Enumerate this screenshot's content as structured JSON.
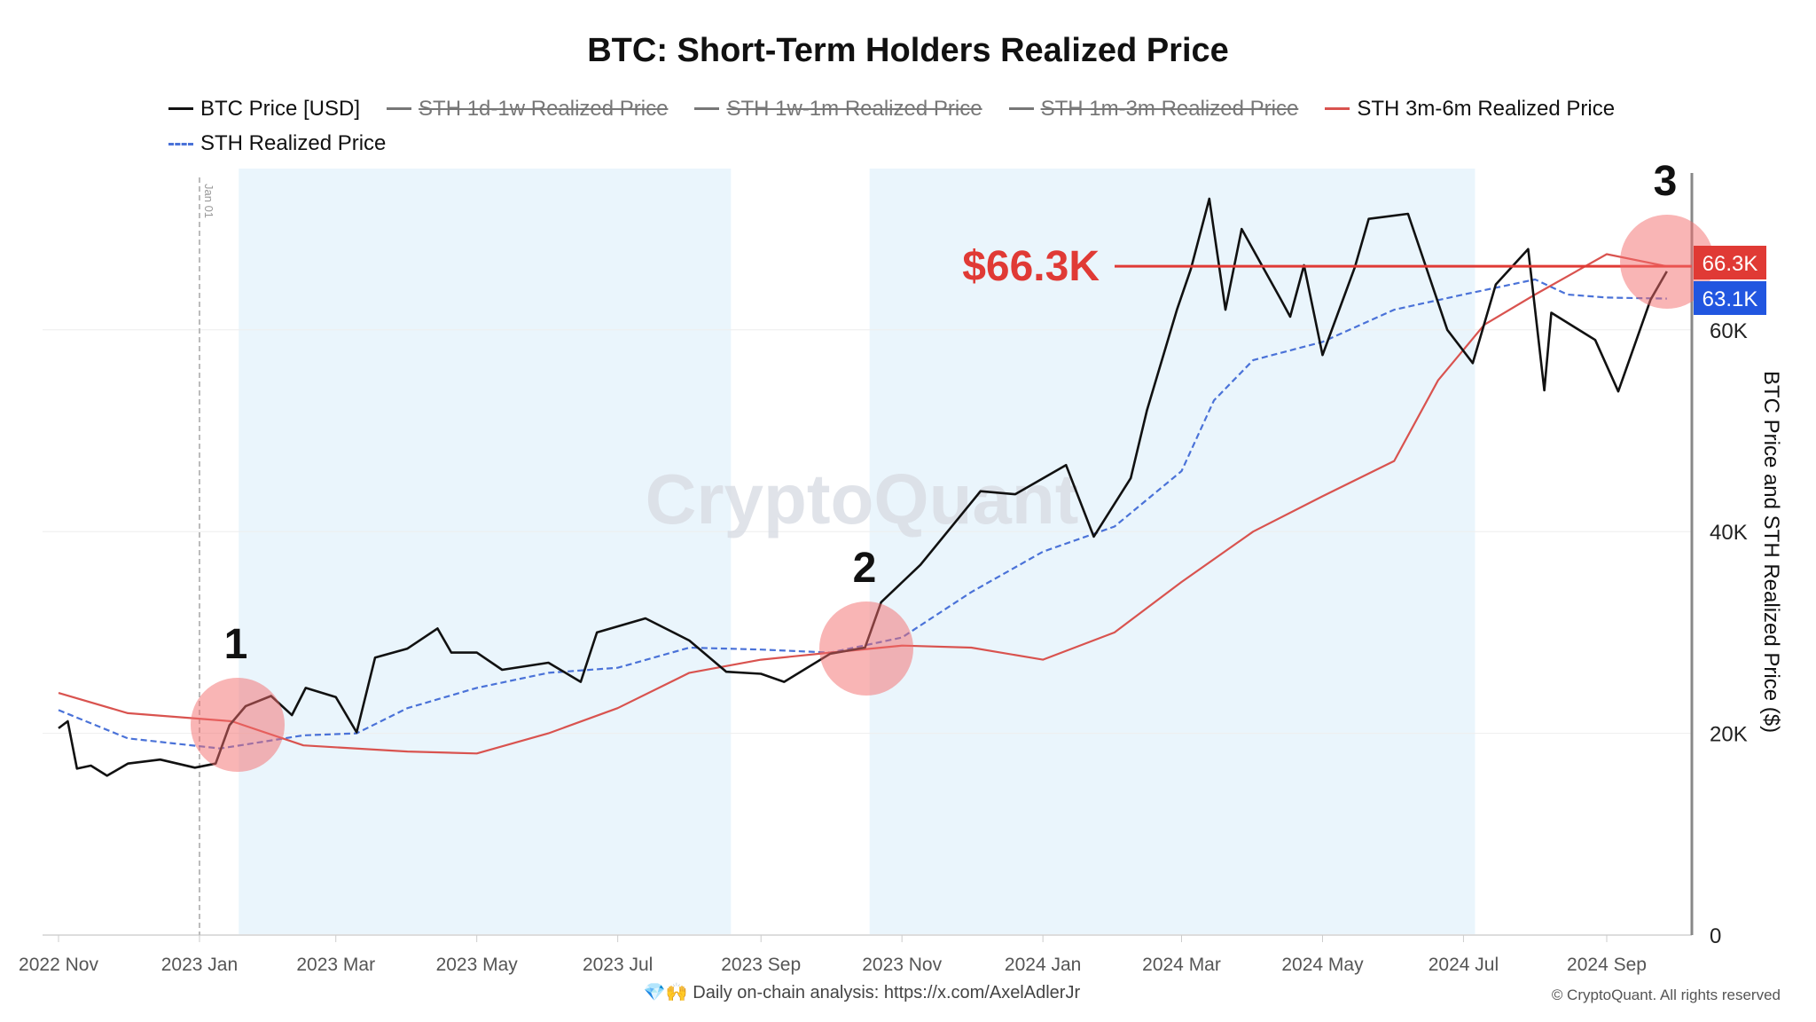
{
  "chart_data": {
    "type": "line",
    "title": "BTC: Short-Term Holders Realized Price",
    "ylabel": "BTC Price and STH Realized Price ($)",
    "ylim": [
      0,
      76000
    ],
    "yticks": [
      {
        "v": 0,
        "label": "0"
      },
      {
        "v": 20000,
        "label": "20K"
      },
      {
        "v": 40000,
        "label": "40K"
      },
      {
        "v": 60000,
        "label": "60K"
      }
    ],
    "xlim": [
      "2022-10-26",
      "2024-10-08"
    ],
    "xticks": [
      {
        "d": "2022-11-01",
        "label": "2022 Nov"
      },
      {
        "d": "2023-01-01",
        "label": "2023 Jan"
      },
      {
        "d": "2023-03-01",
        "label": "2023 Mar"
      },
      {
        "d": "2023-05-01",
        "label": "2023 May"
      },
      {
        "d": "2023-07-01",
        "label": "2023 Jul"
      },
      {
        "d": "2023-09-01",
        "label": "2023 Sep"
      },
      {
        "d": "2023-11-01",
        "label": "2023 Nov"
      },
      {
        "d": "2024-01-01",
        "label": "2024 Jan"
      },
      {
        "d": "2024-03-01",
        "label": "2024 Mar"
      },
      {
        "d": "2024-05-01",
        "label": "2024 May"
      },
      {
        "d": "2024-07-01",
        "label": "2024 Jul"
      },
      {
        "d": "2024-09-01",
        "label": "2024 Sep"
      }
    ],
    "grid": true,
    "legend_position": "top",
    "legend": [
      {
        "name": "BTC Price [USD]",
        "color": "#111111",
        "hidden": false,
        "dash": false
      },
      {
        "name": "STH 1d-1w Realized Price",
        "color": "#777777",
        "hidden": true,
        "dash": false
      },
      {
        "name": "STH 1w-1m Realized Price",
        "color": "#777777",
        "hidden": true,
        "dash": false
      },
      {
        "name": "STH 1m-3m Realized Price",
        "color": "#777777",
        "hidden": true,
        "dash": false
      },
      {
        "name": "STH 3m-6m Realized Price",
        "color": "#d9534f",
        "hidden": false,
        "dash": false
      },
      {
        "name": "STH Realized Price",
        "color": "#4a72d8",
        "hidden": false,
        "dash": true
      }
    ],
    "series": [
      {
        "name": "BTC Price [USD]",
        "color": "#111111",
        "points": [
          [
            "2022-11-01",
            20500
          ],
          [
            "2022-11-05",
            21200
          ],
          [
            "2022-11-09",
            16500
          ],
          [
            "2022-11-15",
            16800
          ],
          [
            "2022-11-22",
            15800
          ],
          [
            "2022-12-01",
            17000
          ],
          [
            "2022-12-15",
            17400
          ],
          [
            "2022-12-30",
            16600
          ],
          [
            "2023-01-08",
            17000
          ],
          [
            "2023-01-14",
            20800
          ],
          [
            "2023-01-21",
            22700
          ],
          [
            "2023-02-01",
            23700
          ],
          [
            "2023-02-10",
            21800
          ],
          [
            "2023-02-16",
            24500
          ],
          [
            "2023-03-01",
            23600
          ],
          [
            "2023-03-10",
            20100
          ],
          [
            "2023-03-18",
            27500
          ],
          [
            "2023-04-01",
            28400
          ],
          [
            "2023-04-14",
            30400
          ],
          [
            "2023-04-20",
            28000
          ],
          [
            "2023-05-01",
            28000
          ],
          [
            "2023-05-12",
            26300
          ],
          [
            "2023-06-01",
            27000
          ],
          [
            "2023-06-15",
            25100
          ],
          [
            "2023-06-22",
            30000
          ],
          [
            "2023-07-13",
            31400
          ],
          [
            "2023-08-01",
            29200
          ],
          [
            "2023-08-17",
            26100
          ],
          [
            "2023-09-01",
            25900
          ],
          [
            "2023-09-11",
            25100
          ],
          [
            "2023-10-01",
            27900
          ],
          [
            "2023-10-16",
            28500
          ],
          [
            "2023-10-23",
            33000
          ],
          [
            "2023-11-09",
            36700
          ],
          [
            "2023-12-05",
            44000
          ],
          [
            "2023-12-20",
            43700
          ],
          [
            "2024-01-11",
            46600
          ],
          [
            "2024-01-23",
            39500
          ],
          [
            "2024-02-08",
            45300
          ],
          [
            "2024-02-15",
            52000
          ],
          [
            "2024-02-28",
            62000
          ],
          [
            "2024-03-05",
            66000
          ],
          [
            "2024-03-13",
            73000
          ],
          [
            "2024-03-20",
            62000
          ],
          [
            "2024-03-27",
            70000
          ],
          [
            "2024-04-13",
            63000
          ],
          [
            "2024-04-17",
            61300
          ],
          [
            "2024-04-23",
            66400
          ],
          [
            "2024-05-01",
            57500
          ],
          [
            "2024-05-15",
            66200
          ],
          [
            "2024-05-21",
            71000
          ],
          [
            "2024-06-07",
            71500
          ],
          [
            "2024-06-24",
            60000
          ],
          [
            "2024-07-05",
            56700
          ],
          [
            "2024-07-15",
            64500
          ],
          [
            "2024-07-29",
            68000
          ],
          [
            "2024-08-05",
            54000
          ],
          [
            "2024-08-08",
            61700
          ],
          [
            "2024-08-27",
            59000
          ],
          [
            "2024-09-06",
            53900
          ],
          [
            "2024-09-20",
            63000
          ],
          [
            "2024-09-27",
            65800
          ]
        ]
      },
      {
        "name": "STH 3m-6m Realized Price",
        "color": "#d9534f",
        "points": [
          [
            "2022-11-01",
            24000
          ],
          [
            "2022-12-01",
            22000
          ],
          [
            "2023-01-15",
            21200
          ],
          [
            "2023-02-15",
            18800
          ],
          [
            "2023-04-01",
            18200
          ],
          [
            "2023-05-01",
            18000
          ],
          [
            "2023-06-01",
            20000
          ],
          [
            "2023-07-01",
            22500
          ],
          [
            "2023-08-01",
            26000
          ],
          [
            "2023-09-01",
            27300
          ],
          [
            "2023-10-01",
            28000
          ],
          [
            "2023-11-01",
            28700
          ],
          [
            "2023-12-01",
            28500
          ],
          [
            "2024-01-01",
            27300
          ],
          [
            "2024-02-01",
            30000
          ],
          [
            "2024-03-01",
            35000
          ],
          [
            "2024-04-01",
            40000
          ],
          [
            "2024-05-01",
            43500
          ],
          [
            "2024-06-01",
            47000
          ],
          [
            "2024-06-20",
            55000
          ],
          [
            "2024-07-10",
            60500
          ],
          [
            "2024-08-01",
            63500
          ],
          [
            "2024-09-01",
            67500
          ],
          [
            "2024-09-27",
            66300
          ]
        ]
      },
      {
        "name": "STH Realized Price",
        "color": "#4a72d8",
        "dash": true,
        "points": [
          [
            "2022-11-01",
            22300
          ],
          [
            "2022-12-01",
            19500
          ],
          [
            "2023-01-10",
            18500
          ],
          [
            "2023-02-15",
            19800
          ],
          [
            "2023-03-10",
            20000
          ],
          [
            "2023-04-01",
            22500
          ],
          [
            "2023-05-01",
            24500
          ],
          [
            "2023-06-01",
            26000
          ],
          [
            "2023-07-01",
            26500
          ],
          [
            "2023-08-01",
            28500
          ],
          [
            "2023-09-01",
            28300
          ],
          [
            "2023-10-01",
            28000
          ],
          [
            "2023-11-01",
            29500
          ],
          [
            "2023-12-01",
            34000
          ],
          [
            "2024-01-01",
            38000
          ],
          [
            "2024-02-01",
            40500
          ],
          [
            "2024-03-01",
            46000
          ],
          [
            "2024-03-15",
            53000
          ],
          [
            "2024-04-01",
            57000
          ],
          [
            "2024-05-01",
            58800
          ],
          [
            "2024-06-01",
            62000
          ],
          [
            "2024-07-01",
            63500
          ],
          [
            "2024-08-01",
            65000
          ],
          [
            "2024-08-15",
            63500
          ],
          [
            "2024-09-01",
            63200
          ],
          [
            "2024-09-27",
            63100
          ]
        ]
      }
    ],
    "shaded_ranges": [
      [
        "2023-01-18",
        "2023-08-19"
      ],
      [
        "2023-10-18",
        "2024-07-06"
      ]
    ],
    "vline": {
      "d": "2023-01-01",
      "label": "Jan 01"
    },
    "annotations": {
      "markers": [
        {
          "label": "1",
          "d": "2023-01-18",
          "v": 21000
        },
        {
          "label": "2",
          "d": "2023-10-18",
          "v": 28200
        },
        {
          "label": "3",
          "d": "2024-09-21",
          "v": 66300
        }
      ],
      "hline": {
        "v": 66300,
        "label": "$66.3K",
        "from": "2023-12-10"
      },
      "last_values": [
        {
          "label": "66.3K",
          "color": "#e03a35"
        },
        {
          "label": "63.1K",
          "color": "#2156e0"
        }
      ]
    },
    "watermark": "CryptoQuant"
  },
  "footer": {
    "emoji": "💎🙌",
    "text": "Daily on-chain analysis: ",
    "link": "https://x.com/AxelAdlerJr",
    "copyright": "© CryptoQuant. All rights reserved"
  }
}
